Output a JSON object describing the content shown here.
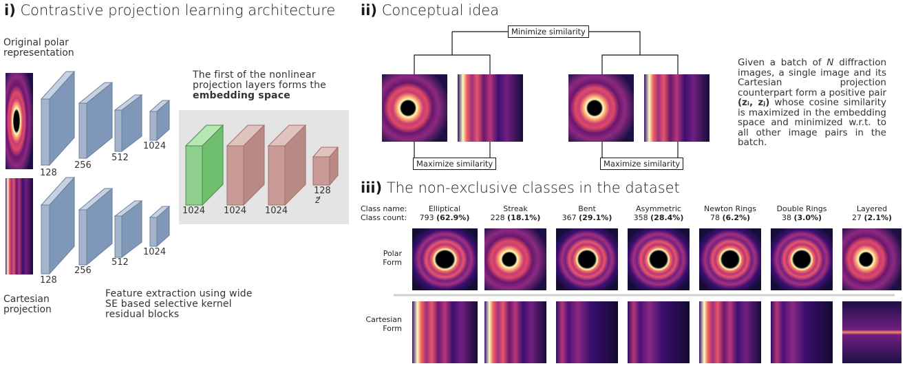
{
  "panel_i": {
    "title_num": "i)",
    "title_text": "Contrastive projection learning architecture",
    "input_polar_label": "Original polar\nrepresentation",
    "input_cartesian_label": "Cartesian\nprojection",
    "encoder_dims": [
      "128",
      "256",
      "512",
      "1024"
    ],
    "projection_note_plain": "The first of the nonlinear projection layers forms the",
    "projection_note_bold": "embedding space",
    "projection_dims": [
      "1024",
      "1024",
      "1024",
      "128"
    ],
    "z_symbol": "z⃗",
    "feature_note": "Feature extraction using wide SE based selective kernel residual blocks",
    "colors": {
      "encoder": "#7f97b8",
      "embedding": "#8fd08f",
      "projection": "#c99a96",
      "panel_bg": "#e4e4e4"
    }
  },
  "panel_ii": {
    "title_num": "ii)",
    "title_text": "Conceptual idea",
    "minimize_label": "Minimize similarity",
    "maximize_label_left": "Maximize similarity",
    "maximize_label_right": "Maximize similarity",
    "description_a": "Given a batch of",
    "description_n": "N",
    "description_b": "diffraction images, a single image and its Cartesian projection counterpart form a positive pair",
    "description_pair": "(zᵢ, zⱼ)",
    "description_c": "whose cosine similarity is maximized in the embedding space and minimized w.r.t. to all other image pairs in the batch."
  },
  "panel_iii": {
    "title_num": "iii)",
    "title_text": "The non-exclusive classes in the dataset",
    "class_name_label": "Class name:",
    "class_count_label": "Class count:",
    "row_polar_label": "Polar\nForm",
    "row_cartesian_label": "Cartesian\nForm",
    "classes": [
      {
        "name": "Elliptical",
        "count": "793",
        "pct": "(62.9%)"
      },
      {
        "name": "Streak",
        "count": "228",
        "pct": "(18.1%)"
      },
      {
        "name": "Bent",
        "count": "367",
        "pct": "(29.1%)"
      },
      {
        "name": "Asymmetric",
        "count": "358",
        "pct": "(28.4%)"
      },
      {
        "name": "Newton Rings",
        "count": "78",
        "pct": "(6.2%)"
      },
      {
        "name": "Double Rings",
        "count": "38",
        "pct": "(3.0%)"
      },
      {
        "name": "Layered",
        "count": "27",
        "pct": "(2.1%)"
      }
    ]
  }
}
